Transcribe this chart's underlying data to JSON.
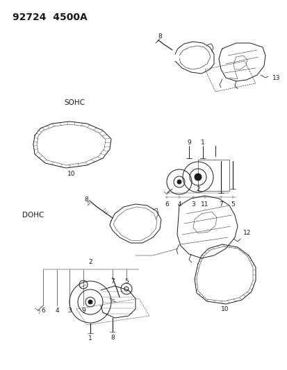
{
  "title": "92724  4500A",
  "bg_color": "#ffffff",
  "line_color": "#1a1a1a",
  "text_color": "#1a1a1a",
  "title_fontsize": 10,
  "label_fontsize": 6.5,
  "fig_w": 4.14,
  "fig_h": 5.33,
  "dpi": 100
}
